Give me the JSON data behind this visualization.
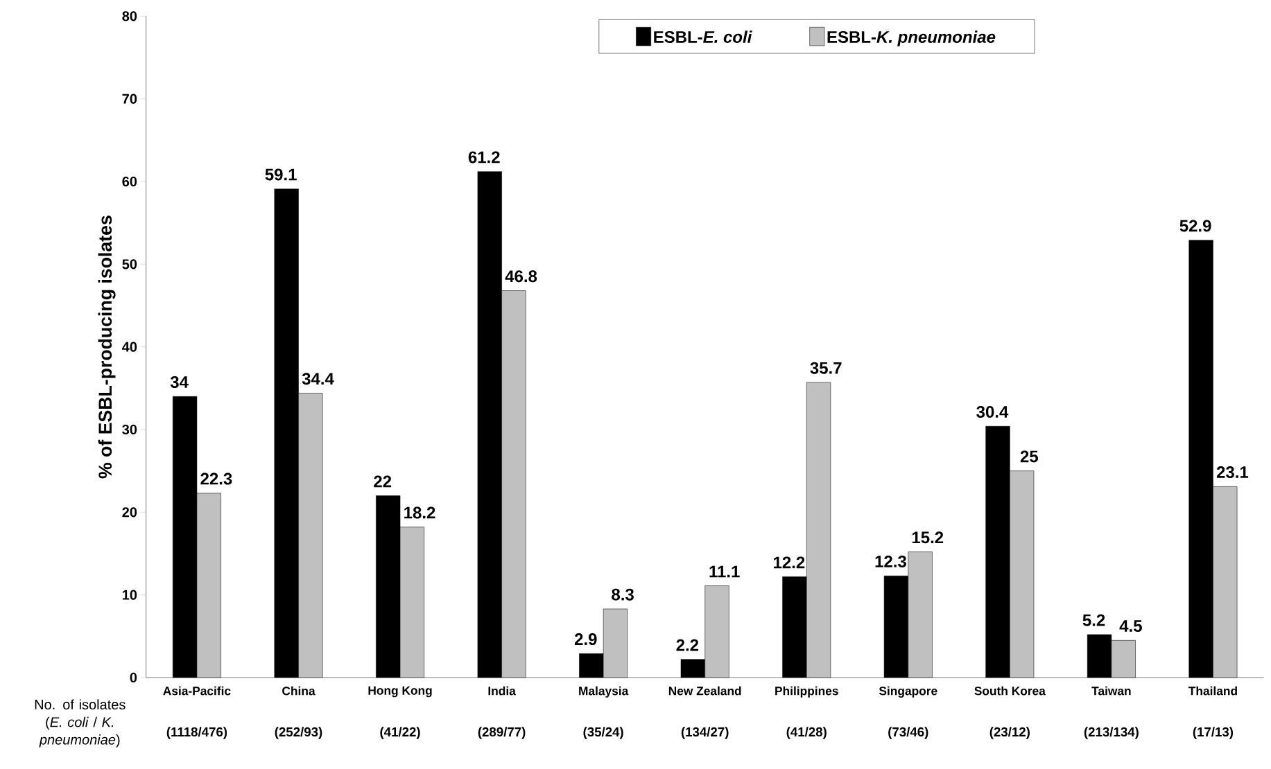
{
  "chart_data": {
    "type": "bar",
    "ylabel": "% of ESBL-producing isolates",
    "categories": [
      "Asia-Pacific",
      "China",
      "Hong Kong",
      "India",
      "Malaysia",
      "New Zealand",
      "Philippines",
      "Singapore",
      "South Korea",
      "Taiwan",
      "Thailand"
    ],
    "series": [
      {
        "name": "ESBL-*E. coli*",
        "color": "#000000",
        "values": [
          34,
          59.1,
          22,
          61.2,
          2.9,
          2.2,
          12.2,
          12.3,
          30.4,
          5.2,
          52.9
        ]
      },
      {
        "name": "ESBL-*K. pneumoniae*",
        "color": "#c0c0c0",
        "values": [
          22.3,
          34.4,
          18.2,
          46.8,
          8.3,
          11.1,
          35.7,
          15.2,
          25,
          4.5,
          23.1
        ]
      }
    ],
    "ylim": [
      0,
      80
    ],
    "yticks": [
      0,
      10,
      20,
      30,
      40,
      50,
      60,
      70,
      80
    ],
    "data_labels": true,
    "legend": "top",
    "annotations": [
      "No. of isolates (*E. coli* / *K. pneumoniae*)",
      "(1118/476)",
      "(252/93)",
      "(41/22)",
      "(289/77)",
      "(35/24)",
      "(134/27)",
      "(41/28)",
      "(73/46)",
      "(23/12)",
      "(213/134)",
      "(17/13)"
    ]
  }
}
